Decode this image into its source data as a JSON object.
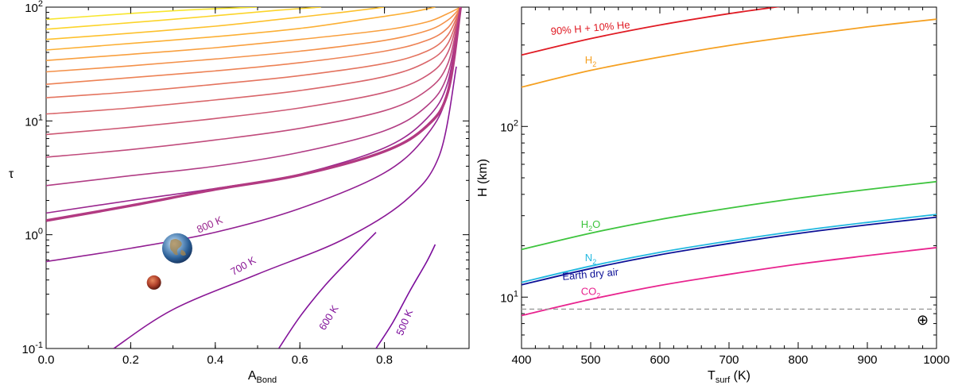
{
  "chart_data": [
    {
      "type": "line",
      "name": "left-panel",
      "xlabel_main": "A",
      "xlabel_sub": "Bond",
      "ylabel": "τ",
      "xlim": [
        0,
        1
      ],
      "ylim_log": [
        -1,
        2
      ],
      "x_ticks": [
        "0.0",
        "0.2",
        "0.4",
        "0.6",
        "0.8"
      ],
      "y_ticks": [
        {
          "base": "10",
          "exp": "-1"
        },
        {
          "base": "10",
          "exp": "0"
        },
        {
          "base": "10",
          "exp": "1"
        },
        {
          "base": "10",
          "exp": "2"
        }
      ],
      "series": [
        {
          "name": "500 K",
          "color": "#7b0d9c",
          "x": [
            0.78,
            0.82,
            0.86,
            0.9,
            0.92
          ],
          "y": [
            0.1,
            0.17,
            0.32,
            0.58,
            0.82
          ]
        },
        {
          "name": "600 K",
          "color": "#82129a",
          "x": [
            0.55,
            0.6,
            0.66,
            0.72,
            0.78
          ],
          "y": [
            0.1,
            0.19,
            0.36,
            0.62,
            1.05
          ]
        },
        {
          "name": "700 K",
          "color": "#8a1896",
          "x": [
            0.16,
            0.3,
            0.5,
            0.7,
            0.85,
            0.93,
            0.97
          ],
          "y": [
            0.1,
            0.22,
            0.45,
            0.9,
            2.0,
            5.0,
            30
          ]
        },
        {
          "name": "",
          "color": "#921f92",
          "x": [
            0,
            0.2,
            0.4,
            0.6,
            0.8,
            0.9,
            0.95,
            0.98
          ],
          "y": [
            0.58,
            0.76,
            1.05,
            1.7,
            3.5,
            7.5,
            18,
            100
          ]
        },
        {
          "name": "",
          "color": "#9a278f",
          "x": [
            0,
            0.2,
            0.4,
            0.6,
            0.8,
            0.9,
            0.95,
            0.98
          ],
          "y": [
            1.55,
            2.0,
            2.55,
            3.4,
            5.8,
            10.5,
            22,
            100
          ]
        },
        {
          "name": "",
          "color": "#b13d85",
          "x": [
            0,
            0.2,
            0.4,
            0.6,
            0.8,
            0.9,
            0.95,
            0.98
          ],
          "y": [
            2.7,
            3.3,
            4.0,
            5.3,
            8.2,
            13.5,
            26,
            100
          ]
        },
        {
          "name": "",
          "color": "#c04b7c",
          "x": [
            0,
            0.2,
            0.4,
            0.6,
            0.8,
            0.9,
            0.95,
            0.98
          ],
          "y": [
            4.8,
            5.6,
            6.8,
            8.6,
            12.3,
            18.5,
            32,
            100
          ]
        },
        {
          "name": "",
          "color": "#cd5874",
          "x": [
            0,
            0.2,
            0.4,
            0.6,
            0.8,
            0.9,
            0.95,
            0.98
          ],
          "y": [
            7.6,
            8.8,
            10.5,
            13,
            17.8,
            25,
            40,
            100
          ]
        },
        {
          "name": "",
          "color": "#d9666a",
          "x": [
            0,
            0.2,
            0.4,
            0.6,
            0.8,
            0.9,
            0.95,
            0.98
          ],
          "y": [
            11.5,
            13,
            15.3,
            18.5,
            24.5,
            33,
            48,
            100
          ]
        },
        {
          "name": "",
          "color": "#e4745f",
          "x": [
            0,
            0.2,
            0.4,
            0.6,
            0.8,
            0.9,
            0.95,
            0.98
          ],
          "y": [
            16,
            18,
            21,
            25,
            32,
            41,
            57,
            100
          ]
        },
        {
          "name": "",
          "color": "#ed8255",
          "x": [
            0,
            0.2,
            0.4,
            0.6,
            0.8,
            0.9,
            0.95,
            0.98
          ],
          "y": [
            21,
            24,
            27.5,
            32.5,
            41,
            51,
            66,
            100
          ]
        },
        {
          "name": "",
          "color": "#f4914a",
          "x": [
            0,
            0.2,
            0.4,
            0.6,
            0.8,
            0.9,
            0.95,
            0.98
          ],
          "y": [
            27,
            30.5,
            35,
            41,
            51,
            62,
            77,
            100
          ]
        },
        {
          "name": "",
          "color": "#f9a03f",
          "x": [
            0,
            0.2,
            0.4,
            0.6,
            0.8,
            0.9,
            0.95,
            0.98
          ],
          "y": [
            34,
            38.5,
            44,
            52,
            63,
            74,
            88,
            100
          ]
        },
        {
          "name": "",
          "color": "#fcb035",
          "x": [
            0,
            0.2,
            0.4,
            0.6,
            0.75,
            0.86,
            0.92
          ],
          "y": [
            42,
            48,
            55,
            65,
            78,
            90,
            100
          ]
        },
        {
          "name": "",
          "color": "#fdc12d",
          "x": [
            0,
            0.2,
            0.4,
            0.55,
            0.7,
            0.8
          ],
          "y": [
            52,
            59,
            68,
            78,
            90,
            100
          ]
        },
        {
          "name": "",
          "color": "#fcd42a",
          "x": [
            0,
            0.2,
            0.4,
            0.55,
            0.65
          ],
          "y": [
            64,
            73,
            84,
            94,
            100
          ]
        },
        {
          "name": "",
          "color": "#f8e62e",
          "x": [
            0,
            0.2,
            0.35,
            0.5
          ],
          "y": [
            78,
            88,
            95,
            100
          ]
        }
      ],
      "reference_curve": {
        "color": "#b23a82",
        "x": [
          0,
          0.2,
          0.4,
          0.6,
          0.8,
          0.9,
          0.95,
          0.98
        ],
        "y": [
          1.33,
          1.8,
          2.5,
          3.35,
          5.4,
          9.0,
          18,
          100
        ]
      },
      "markers": [
        {
          "name": "Earth",
          "x": 0.31,
          "y": 0.76,
          "color": "#3a78b8"
        },
        {
          "name": "Mars",
          "x": 0.255,
          "y": 0.38,
          "color": "#b0402a"
        }
      ],
      "annotations": [
        {
          "text": "800 K",
          "x": 0.39,
          "y": 1.15,
          "rotate": -24,
          "color": "#9a278f"
        },
        {
          "text": "700 K",
          "x": 0.47,
          "y": 0.5,
          "rotate": -30,
          "color": "#8a1896"
        },
        {
          "text": "600 K",
          "x": 0.675,
          "y": 0.18,
          "rotate": -58,
          "color": "#82129a"
        },
        {
          "text": "500 K",
          "x": 0.855,
          "y": 0.165,
          "rotate": -67,
          "color": "#7b0d9c"
        }
      ]
    },
    {
      "type": "line",
      "name": "right-panel",
      "xlabel_main": "T",
      "xlabel_sub": "surf",
      "xlabel_unit": " (K)",
      "ylabel": "H (km)",
      "xlim": [
        400,
        1000
      ],
      "ylim_log": [
        0.699,
        2.699
      ],
      "x_ticks": [
        "400",
        "500",
        "600",
        "700",
        "800",
        "900",
        "1000"
      ],
      "y_ticks": [
        {
          "base": "10",
          "exp": "1"
        },
        {
          "base": "10",
          "exp": "2"
        }
      ],
      "series": [
        {
          "name": "90% H + 10% He",
          "color": "#e01b24",
          "x": [
            400,
            500,
            600,
            700,
            775
          ],
          "y": [
            262,
            327,
            393,
            458,
            505
          ]
        },
        {
          "name": "H2",
          "color": "#f5a021",
          "x": [
            400,
            500,
            600,
            700,
            800,
            900,
            1000
          ],
          "y": [
            170,
            213,
            255,
            298,
            340,
            383,
            425
          ]
        },
        {
          "name": "H2O",
          "color": "#3ec43e",
          "x": [
            400,
            500,
            600,
            700,
            800,
            900,
            1000
          ],
          "y": [
            19,
            23.7,
            28.5,
            33.2,
            38,
            42.7,
            47.5
          ]
        },
        {
          "name": "N2",
          "color": "#22b8e0",
          "x": [
            400,
            500,
            600,
            700,
            800,
            900,
            1000
          ],
          "y": [
            12.2,
            15.2,
            18.3,
            21.3,
            24.4,
            27.4,
            30.5
          ]
        },
        {
          "name": "Earth dry air",
          "color": "#0b0f96",
          "x": [
            400,
            500,
            600,
            700,
            800,
            900,
            1000
          ],
          "y": [
            11.8,
            14.7,
            17.7,
            20.6,
            23.6,
            26.5,
            29.4
          ]
        },
        {
          "name": "CO2",
          "color": "#e8238e",
          "x": [
            400,
            500,
            600,
            700,
            800,
            900,
            1000
          ],
          "y": [
            7.8,
            9.7,
            11.7,
            13.6,
            15.6,
            17.5,
            19.5
          ]
        }
      ],
      "reference_line": {
        "y": 8.5,
        "color": "#999999",
        "style": "dashed"
      },
      "annotations": [
        {
          "text": "90% H + 10% He",
          "series": "90% H + 10% He",
          "x": 500,
          "y": 360,
          "rotate": -5,
          "color": "#e01b24"
        },
        {
          "text_main": "H",
          "text_sub": "2",
          "series": "H2",
          "x": 500,
          "y": 234,
          "color": "#f5a021"
        },
        {
          "text_main": "H",
          "text_sub": "2",
          "text_tail": "O",
          "series": "H2O",
          "x": 500,
          "y": 25.5,
          "color": "#3ec43e"
        },
        {
          "text_main": "N",
          "text_sub": "2",
          "series": "N2",
          "x": 500,
          "y": 16.2,
          "color": "#22b8e0"
        },
        {
          "text": "Earth dry air",
          "series": "Earth dry air",
          "x": 500,
          "y": 13.0,
          "rotate": -5,
          "color": "#0b0f96"
        },
        {
          "text_main": "CO",
          "text_sub": "2",
          "series": "CO2",
          "x": 500,
          "y": 10.3,
          "color": "#e8238e"
        }
      ],
      "earth_symbol": {
        "text": "⊕",
        "x": 980,
        "y": 7.35
      }
    }
  ]
}
